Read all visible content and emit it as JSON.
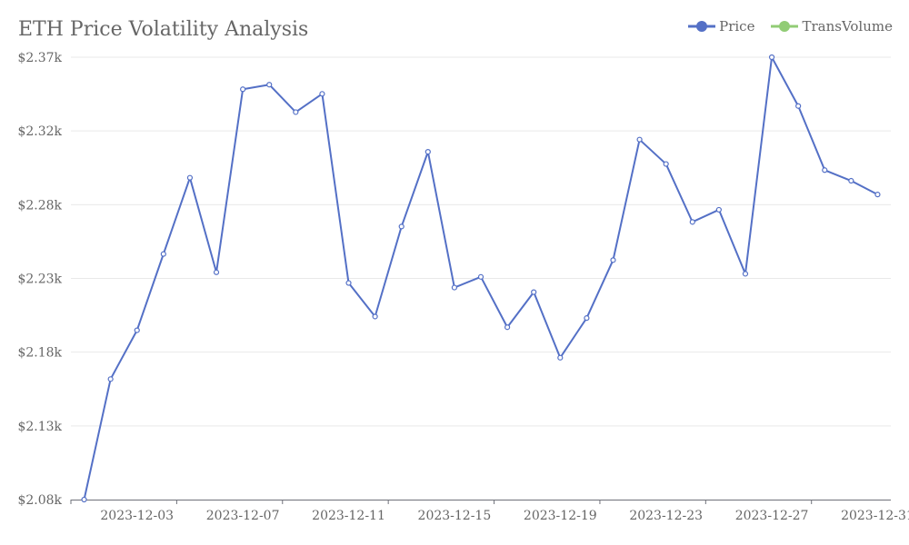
{
  "chart_data": {
    "type": "line",
    "title": "ETH Price Volatility Analysis",
    "xlabel": "",
    "ylabel": "",
    "ylim": [
      2.08,
      2.37
    ],
    "y_ticks": [
      "$2.08k",
      "$2.13k",
      "$2.18k",
      "$2.23k",
      "$2.28k",
      "$2.32k",
      "$2.37k"
    ],
    "x_ticks": [
      "2023-12-03",
      "2023-12-07",
      "2023-12-11",
      "2023-12-15",
      "2023-12-19",
      "2023-12-23",
      "2023-12-27",
      "2023-12-31"
    ],
    "grid": true,
    "legend_position": "top-right",
    "legend": [
      {
        "name": "Price",
        "color": "#5470c6"
      },
      {
        "name": "TransVolume",
        "color": "#91cc75"
      }
    ],
    "x": [
      "2023-12-01",
      "2023-12-02",
      "2023-12-03",
      "2023-12-04",
      "2023-12-05",
      "2023-12-06",
      "2023-12-07",
      "2023-12-08",
      "2023-12-09",
      "2023-12-10",
      "2023-12-11",
      "2023-12-12",
      "2023-12-13",
      "2023-12-14",
      "2023-12-15",
      "2023-12-16",
      "2023-12-17",
      "2023-12-18",
      "2023-12-19",
      "2023-12-20",
      "2023-12-21",
      "2023-12-22",
      "2023-12-23",
      "2023-12-24",
      "2023-12-25",
      "2023-12-26",
      "2023-12-27",
      "2023-12-28",
      "2023-12-29",
      "2023-12-30",
      "2023-12-31"
    ],
    "series": [
      {
        "name": "Price",
        "color": "#5470c6",
        "values": [
          2.08,
          2.159,
          2.191,
          2.241,
          2.291,
          2.229,
          2.349,
          2.352,
          2.334,
          2.346,
          2.222,
          2.2,
          2.259,
          2.308,
          2.219,
          2.226,
          2.193,
          2.216,
          2.173,
          2.199,
          2.237,
          2.316,
          2.3,
          2.262,
          2.27,
          2.228,
          2.37,
          2.338,
          2.296,
          2.289,
          2.28
        ]
      }
    ]
  }
}
